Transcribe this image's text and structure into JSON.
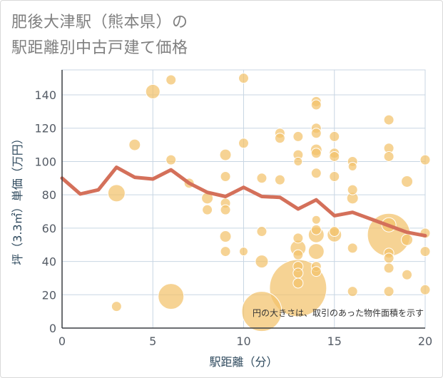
{
  "header": {
    "title_line1": "肥後大津駅（熊本県）の",
    "title_line2": "駅距離別中古戸建て価格"
  },
  "chart_data": {
    "type": "scatter",
    "xlabel": "駅距離（分）",
    "ylabel": "坪（3.3㎡）単価（万円）",
    "xlim": [
      0,
      20
    ],
    "ylim": [
      0,
      155
    ],
    "x_ticks": [
      0,
      5,
      10,
      15,
      20
    ],
    "y_ticks": [
      0,
      20,
      40,
      60,
      80,
      100,
      120,
      140
    ],
    "grid": true,
    "note": "円の大きさは、取引のあった物件面積を示す",
    "colors": {
      "point": "#f2c26b",
      "line": "#d4705a",
      "grid": "#c8d6e3"
    },
    "points": [
      {
        "x": 3,
        "y": 13,
        "s": 7
      },
      {
        "x": 3,
        "y": 81,
        "s": 12
      },
      {
        "x": 4,
        "y": 110,
        "s": 8
      },
      {
        "x": 5,
        "y": 142,
        "s": 10
      },
      {
        "x": 6,
        "y": 149,
        "s": 7
      },
      {
        "x": 6,
        "y": 101,
        "s": 7
      },
      {
        "x": 6,
        "y": 19,
        "s": 18
      },
      {
        "x": 7,
        "y": 87,
        "s": 7
      },
      {
        "x": 8,
        "y": 78,
        "s": 8
      },
      {
        "x": 8,
        "y": 71,
        "s": 7
      },
      {
        "x": 9,
        "y": 104,
        "s": 8
      },
      {
        "x": 9,
        "y": 91,
        "s": 7
      },
      {
        "x": 9,
        "y": 75,
        "s": 7
      },
      {
        "x": 9,
        "y": 71,
        "s": 7
      },
      {
        "x": 9,
        "y": 55,
        "s": 8
      },
      {
        "x": 9,
        "y": 46,
        "s": 7
      },
      {
        "x": 10,
        "y": 150,
        "s": 7
      },
      {
        "x": 10,
        "y": 111,
        "s": 7
      },
      {
        "x": 10,
        "y": 46,
        "s": 6
      },
      {
        "x": 11,
        "y": 90,
        "s": 7
      },
      {
        "x": 11,
        "y": 58,
        "s": 7
      },
      {
        "x": 11,
        "y": 40,
        "s": 9
      },
      {
        "x": 11,
        "y": 10,
        "s": 28
      },
      {
        "x": 12,
        "y": 117,
        "s": 7
      },
      {
        "x": 12,
        "y": 114,
        "s": 7
      },
      {
        "x": 12,
        "y": 89,
        "s": 7
      },
      {
        "x": 13,
        "y": 115,
        "s": 7
      },
      {
        "x": 13,
        "y": 104,
        "s": 7
      },
      {
        "x": 13,
        "y": 100,
        "s": 6
      },
      {
        "x": 13,
        "y": 54,
        "s": 7
      },
      {
        "x": 13,
        "y": 48,
        "s": 11
      },
      {
        "x": 13,
        "y": 44,
        "s": 7
      },
      {
        "x": 13,
        "y": 37,
        "s": 7
      },
      {
        "x": 13,
        "y": 33,
        "s": 7
      },
      {
        "x": 13,
        "y": 27,
        "s": 7
      },
      {
        "x": 13,
        "y": 24,
        "s": 40
      },
      {
        "x": 14,
        "y": 136,
        "s": 7
      },
      {
        "x": 14,
        "y": 134,
        "s": 7
      },
      {
        "x": 14,
        "y": 120,
        "s": 7
      },
      {
        "x": 14,
        "y": 117,
        "s": 7
      },
      {
        "x": 14,
        "y": 107,
        "s": 8
      },
      {
        "x": 14,
        "y": 105,
        "s": 7
      },
      {
        "x": 14,
        "y": 93,
        "s": 7
      },
      {
        "x": 14,
        "y": 65,
        "s": 6
      },
      {
        "x": 14,
        "y": 59,
        "s": 7
      },
      {
        "x": 14,
        "y": 56,
        "s": 11
      },
      {
        "x": 14,
        "y": 46,
        "s": 11
      },
      {
        "x": 14,
        "y": 37,
        "s": 7
      },
      {
        "x": 14,
        "y": 34,
        "s": 7
      },
      {
        "x": 15,
        "y": 115,
        "s": 7
      },
      {
        "x": 15,
        "y": 105,
        "s": 7
      },
      {
        "x": 15,
        "y": 103,
        "s": 7
      },
      {
        "x": 15,
        "y": 91,
        "s": 7
      },
      {
        "x": 15,
        "y": 58,
        "s": 7
      },
      {
        "x": 15,
        "y": 56,
        "s": 10
      },
      {
        "x": 16,
        "y": 100,
        "s": 7
      },
      {
        "x": 16,
        "y": 97,
        "s": 6
      },
      {
        "x": 16,
        "y": 83,
        "s": 7
      },
      {
        "x": 16,
        "y": 78,
        "s": 8
      },
      {
        "x": 16,
        "y": 48,
        "s": 7
      },
      {
        "x": 16,
        "y": 22,
        "s": 7
      },
      {
        "x": 18,
        "y": 125,
        "s": 7
      },
      {
        "x": 18,
        "y": 108,
        "s": 7
      },
      {
        "x": 18,
        "y": 103,
        "s": 7
      },
      {
        "x": 18,
        "y": 62,
        "s": 10
      },
      {
        "x": 18,
        "y": 56,
        "s": 30
      },
      {
        "x": 18,
        "y": 45,
        "s": 7
      },
      {
        "x": 18,
        "y": 42,
        "s": 7
      },
      {
        "x": 18,
        "y": 36,
        "s": 7
      },
      {
        "x": 18,
        "y": 22,
        "s": 7
      },
      {
        "x": 19,
        "y": 88,
        "s": 8
      },
      {
        "x": 19,
        "y": 53,
        "s": 8
      },
      {
        "x": 19,
        "y": 32,
        "s": 7
      },
      {
        "x": 20,
        "y": 101,
        "s": 7
      },
      {
        "x": 20,
        "y": 57,
        "s": 7
      },
      {
        "x": 20,
        "y": 46,
        "s": 7
      },
      {
        "x": 20,
        "y": 23,
        "s": 7
      }
    ],
    "trend": {
      "x": [
        0,
        1,
        2,
        3,
        4,
        5,
        6,
        7,
        8,
        9,
        10,
        11,
        12,
        13,
        14,
        15,
        16,
        17,
        18,
        19,
        20
      ],
      "y": [
        90,
        80.5,
        83,
        96.5,
        90.5,
        89.5,
        95,
        87,
        81.5,
        79,
        84.5,
        79,
        78.5,
        71.5,
        77,
        67.5,
        69.5,
        65.5,
        61.5,
        57.5,
        55.5
      ]
    }
  }
}
